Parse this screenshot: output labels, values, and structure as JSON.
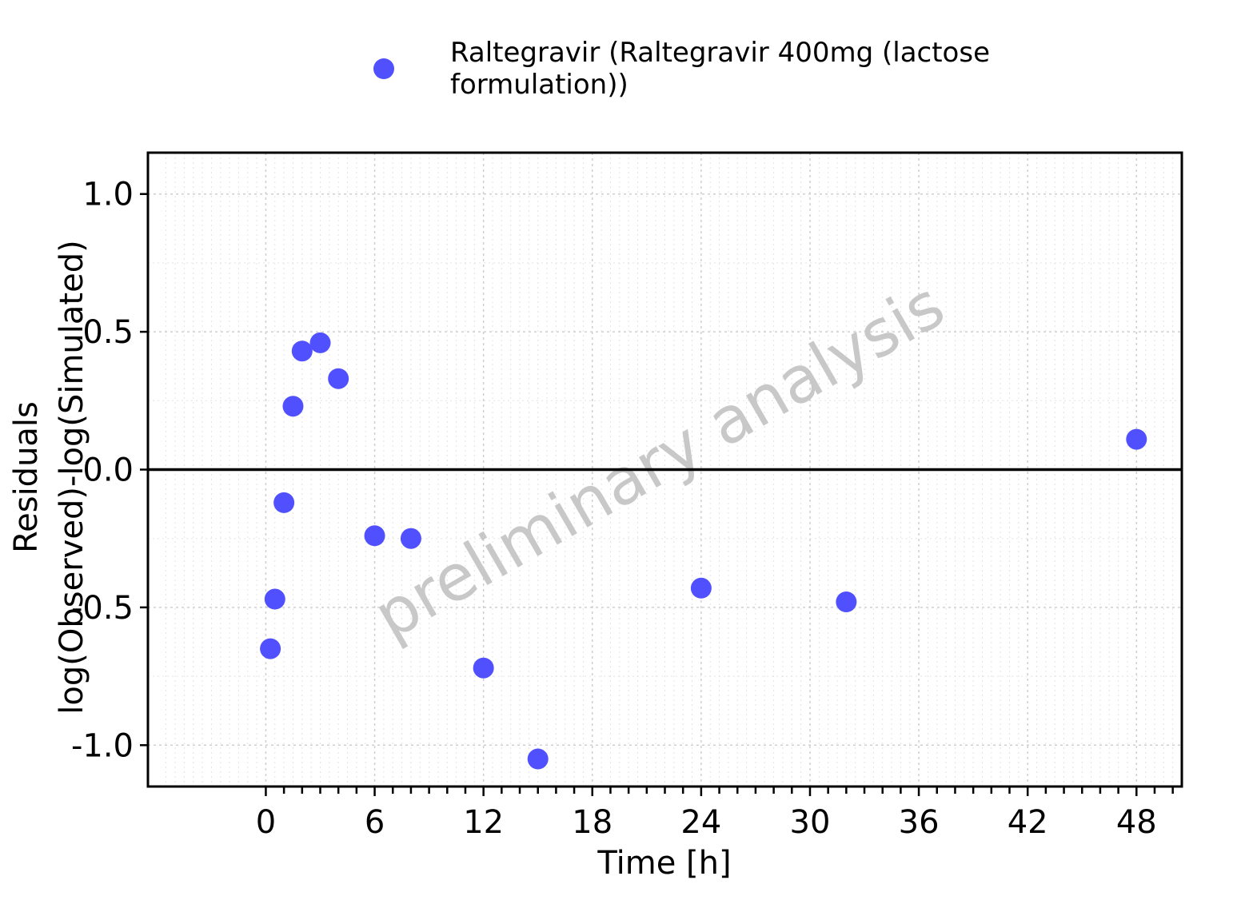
{
  "chart_data": {
    "type": "scatter",
    "xlabel": "Time [h]",
    "ylabel_lines": [
      "Residuals",
      "log(Observed)-log(Simulated)"
    ],
    "xlim": [
      -6.5,
      50.5
    ],
    "ylim": [
      -1.15,
      1.15
    ],
    "x_ticks": [
      0,
      6,
      12,
      18,
      24,
      30,
      36,
      42,
      48
    ],
    "x_tick_labels": [
      "0",
      "6",
      "12",
      "18",
      "24",
      "30",
      "36",
      "42",
      "48"
    ],
    "y_ticks": [
      -1.0,
      -0.5,
      0.0,
      0.5,
      1.0
    ],
    "y_tick_labels": [
      "-1.0",
      "-0.5",
      "0.0",
      "0.5",
      "1.0"
    ],
    "reference_line_y": 0,
    "grid": true,
    "legend_position": "top",
    "watermark": "preliminary analysis",
    "series": [
      {
        "name_lines": [
          "Raltegravir (Raltegravir 400mg (lactose",
          "formulation))"
        ],
        "color": "#5050ff",
        "points": [
          {
            "x": 0.25,
            "y": -0.65
          },
          {
            "x": 0.5,
            "y": -0.47
          },
          {
            "x": 1.0,
            "y": -0.12
          },
          {
            "x": 1.5,
            "y": 0.23
          },
          {
            "x": 2.0,
            "y": 0.43
          },
          {
            "x": 3.0,
            "y": 0.46
          },
          {
            "x": 4.0,
            "y": 0.33
          },
          {
            "x": 6.0,
            "y": -0.24
          },
          {
            "x": 8.0,
            "y": -0.25
          },
          {
            "x": 12.0,
            "y": -0.72
          },
          {
            "x": 15.0,
            "y": -1.05
          },
          {
            "x": 24.0,
            "y": -0.43
          },
          {
            "x": 32.0,
            "y": -0.48
          },
          {
            "x": 48.0,
            "y": 0.11
          }
        ]
      }
    ]
  }
}
